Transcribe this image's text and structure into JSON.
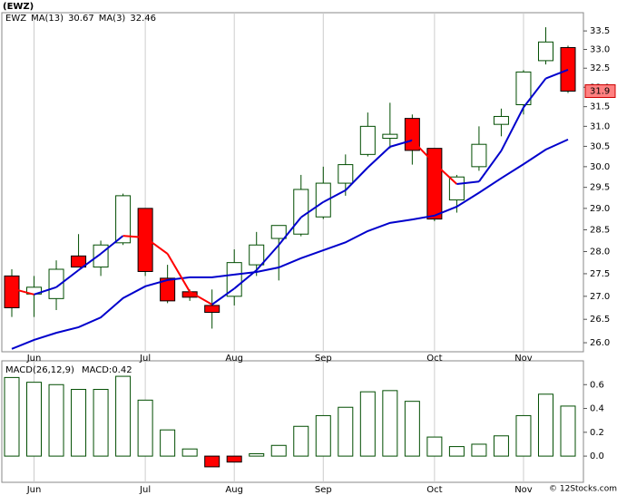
{
  "chart_data": [
    {
      "type": "candlestick",
      "title": "(EWZ)",
      "symbol": "EWZ",
      "symbol_color": "#008000",
      "categories": [
        null,
        "Jun",
        null,
        null,
        null,
        null,
        "Jul",
        null,
        null,
        null,
        "Aug",
        null,
        null,
        null,
        "Sep",
        null,
        null,
        null,
        null,
        "Oct",
        null,
        null,
        null,
        "Nov",
        null,
        null
      ],
      "open": [
        27.45,
        27.05,
        26.95,
        27.9,
        27.65,
        28.2,
        29.0,
        27.4,
        27.1,
        26.8,
        27.0,
        27.7,
        28.3,
        28.4,
        28.8,
        29.6,
        30.3,
        30.7,
        31.2,
        30.45,
        29.2,
        30.0,
        31.05,
        31.55,
        32.7,
        33.05
      ],
      "high": [
        27.6,
        27.45,
        27.8,
        28.4,
        28.25,
        29.35,
        29.0,
        27.7,
        27.15,
        27.15,
        28.05,
        28.45,
        28.6,
        29.8,
        30.0,
        30.3,
        31.35,
        31.6,
        31.3,
        30.45,
        29.8,
        31.0,
        31.45,
        32.45,
        33.6,
        33.1
      ],
      "low": [
        26.55,
        26.55,
        26.7,
        27.65,
        27.45,
        28.15,
        27.45,
        26.85,
        26.9,
        26.3,
        26.8,
        27.45,
        27.35,
        28.35,
        28.75,
        29.3,
        30.25,
        30.45,
        30.05,
        28.7,
        28.9,
        29.9,
        30.75,
        31.3,
        32.6,
        31.85
      ],
      "close": [
        26.75,
        27.2,
        27.6,
        27.65,
        28.15,
        29.3,
        27.55,
        26.9,
        26.98,
        26.65,
        27.75,
        28.15,
        28.6,
        29.45,
        29.6,
        30.05,
        31.0,
        30.8,
        30.4,
        28.75,
        29.75,
        30.55,
        31.25,
        32.4,
        33.2,
        31.9
      ],
      "up_color": "#ffffff",
      "down_color": "#ff0000",
      "edge_color": "#004d00",
      "series": [
        {
          "name": "MA(13)",
          "color": "#0000cc",
          "values": [
            25.87,
            26.06,
            26.21,
            26.33,
            26.54,
            26.96,
            27.22,
            27.36,
            27.42,
            27.42,
            27.48,
            27.54,
            27.64,
            27.85,
            28.03,
            28.21,
            28.47,
            28.66,
            28.74,
            28.83,
            29.04,
            29.37,
            29.72,
            30.06,
            30.42,
            30.67
          ]
        },
        {
          "name": "MA(3)",
          "color": "#0000cc",
          "down_color": "#ff0000",
          "values": [
            27.17,
            27.04,
            27.2,
            27.58,
            27.95,
            28.36,
            28.32,
            27.95,
            27.1,
            26.82,
            27.17,
            27.58,
            28.15,
            28.79,
            29.15,
            29.43,
            29.98,
            30.49,
            30.65,
            30.08,
            29.58,
            29.64,
            30.39,
            31.48,
            32.23,
            32.46
          ]
        }
      ],
      "ylim": [
        25.81,
        34.0
      ],
      "log_scale": true,
      "grid": "x",
      "yticks": [
        {
          "value": 26,
          "label": "26.0"
        },
        26.5,
        {
          "value": 27,
          "label": "27.0"
        },
        27.5,
        {
          "value": 28,
          "label": "28.0"
        },
        28.5,
        {
          "value": 29,
          "label": "29.0"
        },
        29.5,
        {
          "value": 30,
          "label": "30.0"
        },
        30.5,
        {
          "value": 31,
          "label": "31.0"
        },
        31.5,
        {
          "value": 32,
          "label": "32.0"
        },
        32.5,
        {
          "value": 33,
          "label": "33.0"
        },
        33.5
      ]
    },
    {
      "type": "bar",
      "name": "MACD(26,12,9)",
      "current_label": "MACD:",
      "color": "#ffffff",
      "edge_color": "#004d00",
      "negative_color": "#ff0000",
      "categories": [
        null,
        "Jun",
        null,
        null,
        null,
        null,
        "Jul",
        null,
        null,
        null,
        "Aug",
        null,
        null,
        null,
        "Sep",
        null,
        null,
        null,
        null,
        "Oct",
        null,
        null,
        null,
        "Nov",
        null,
        null
      ],
      "values": [
        0.66,
        0.62,
        0.6,
        0.56,
        0.56,
        0.67,
        0.47,
        0.22,
        0.06,
        -0.09,
        -0.05,
        0.02,
        0.09,
        0.25,
        0.34,
        0.41,
        0.54,
        0.55,
        0.46,
        0.16,
        0.08,
        0.1,
        0.17,
        0.34,
        0.52,
        0.42
      ],
      "ylim": [
        -0.22,
        0.8
      ],
      "yticks": [
        {
          "value": 0,
          "label": "0.0"
        },
        0.2,
        0.4,
        0.6
      ],
      "grid": "x"
    }
  ],
  "footer": "© 12Stocks.com"
}
